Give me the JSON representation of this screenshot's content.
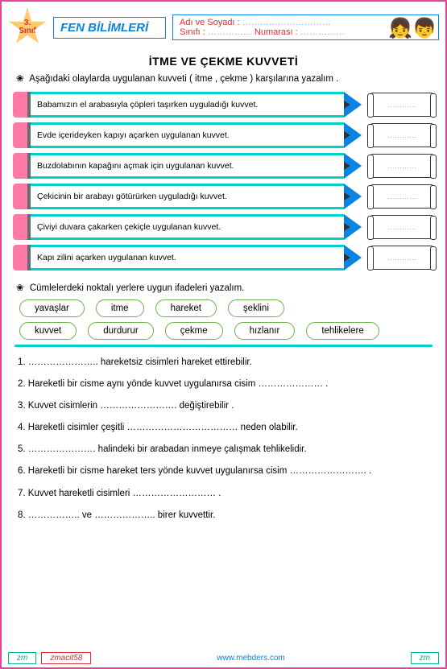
{
  "header": {
    "grade_line1": "3.",
    "grade_line2": "Sınıf",
    "subject_title": "FEN BİLİMLERİ",
    "name_label": "Adı ve Soyadı :",
    "class_label": "Sınıfı :",
    "number_label": "Numarası :",
    "dots": "…………………………",
    "dots2": "……………"
  },
  "section1": {
    "title": "İTME VE ÇEKME KUVVETİ",
    "instruction": "Aşağıdaki olaylarda uygulanan kuvveti ( itme , çekme ) karşılarına yazalım .",
    "rows": [
      "Babamızın el arabasıyla çöpleri taşırken uyguladığı kuvvet.",
      "Evde içerideyken kapıyı açarken uygulanan kuvvet.",
      "Buzdolabının kapağını açmak için uygulanan kuvvet.",
      "Çekicinin bir arabayı götürürken uyguladığı kuvvet.",
      "Çiviyi duvara çakarken çekiçle uygulanan kuvvet.",
      "Kapı zilini açarken uygulanan kuvvet."
    ],
    "answer_placeholder": "…………"
  },
  "section2": {
    "instruction": "Cümlelerdeki noktalı yerlere uygun ifadeleri yazalım.",
    "words_row1": [
      "yavaşlar",
      "itme",
      "hareket",
      "şeklini"
    ],
    "words_row2": [
      "kuvvet",
      "durdurur",
      "çekme",
      "hızlanır",
      "tehlikelere"
    ],
    "sentences": [
      "1. ………………….. hareketsiz cisimleri hareket ettirebilir.",
      "2. Hareketli bir cisme aynı yönde kuvvet uygulanırsa cisim ………………… .",
      "3. Kuvvet cisimlerin ……………………. değiştirebilir .",
      "4. Hareketli cisimler çeşitli ……………………………… neden olabilir.",
      "5. …………………. halindeki bir arabadan inmeye çalışmak tehlikelidir.",
      "6. Hareketli bir cisme hareket ters yönde kuvvet uygulanırsa cisim ……………………. .",
      "7. Kuvvet hareketli cisimleri ……………………… .",
      "8. …………….. ve ……………….. birer kuvvettir."
    ]
  },
  "footer": {
    "left": "zm",
    "code": "zmacit58",
    "url": "www.mebders.com",
    "right": "zm"
  },
  "colors": {
    "page_border": "#e84393",
    "header_border": "#0984e3",
    "header_text": "#d63031",
    "star_fill": "#fdcb6e",
    "star_border": "#e17055",
    "pencil_eraser": "#fd79a8",
    "pencil_teal": "#00cec9",
    "pencil_tip": "#0984e3",
    "word_border": "#6ab04c"
  }
}
